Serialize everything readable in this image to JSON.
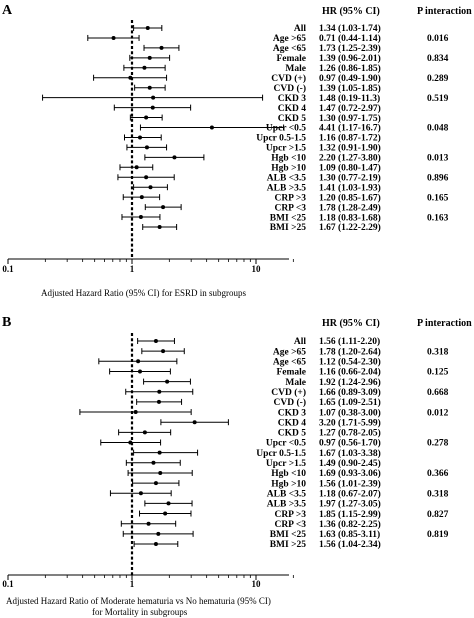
{
  "chart_data": [
    {
      "panel": "A",
      "type": "forest",
      "x_scale": "log",
      "xlim": [
        0.1,
        20
      ],
      "x_ticks": [
        "0.1",
        "1",
        "10"
      ],
      "reference_line": 1,
      "xlabel": "Adjusted Hazard Ratio (95% CI) for ESRD in subgroups",
      "headers": {
        "hr": "HR (95% CI)",
        "p": "P interaction"
      },
      "rows": [
        {
          "label": "All",
          "hr": 1.34,
          "lo": 1.03,
          "hi": 1.74,
          "text": "1.34 (1.03-1.74)",
          "p": ""
        },
        {
          "label": "Age >65",
          "hr": 0.71,
          "lo": 0.44,
          "hi": 1.14,
          "text": "0.71 (0.44-1.14)",
          "p": "0.016"
        },
        {
          "label": "Age <65",
          "hr": 1.73,
          "lo": 1.25,
          "hi": 2.39,
          "text": "1.73 (1.25-2.39)",
          "p": ""
        },
        {
          "label": "Female",
          "hr": 1.39,
          "lo": 0.96,
          "hi": 2.01,
          "text": "1.39 (0.96-2.01)",
          "p": "0.834"
        },
        {
          "label": "Male",
          "hr": 1.26,
          "lo": 0.86,
          "hi": 1.85,
          "text": "1.26 (0.86-1.85)",
          "p": ""
        },
        {
          "label": "CVD (+)",
          "hr": 0.97,
          "lo": 0.49,
          "hi": 1.9,
          "text": "0.97 (0.49-1.90)",
          "p": "0.289"
        },
        {
          "label": "CVD (-)",
          "hr": 1.39,
          "lo": 1.05,
          "hi": 1.85,
          "text": "1.39 (1.05-1.85)",
          "p": ""
        },
        {
          "label": "CKD 3",
          "hr": 1.48,
          "lo": 0.19,
          "hi": 11.3,
          "text": "1.48 (0.19-11.3)",
          "p": "0.519"
        },
        {
          "label": "CKD 4",
          "hr": 1.47,
          "lo": 0.72,
          "hi": 2.97,
          "text": "1.47 (0.72-2.97)",
          "p": ""
        },
        {
          "label": "CKD 5",
          "hr": 1.3,
          "lo": 0.97,
          "hi": 1.75,
          "text": "1.30 (0.97-1.75)",
          "p": ""
        },
        {
          "label": "Upcr <0.5",
          "hr": 4.41,
          "lo": 1.17,
          "hi": 16.7,
          "text": "4.41 (1.17-16.7)",
          "p": "0.048"
        },
        {
          "label": "Upcr 0.5-1.5",
          "hr": 1.16,
          "lo": 0.87,
          "hi": 1.72,
          "text": "1.16 (0.87-1.72)",
          "p": ""
        },
        {
          "label": "Upcr >1.5",
          "hr": 1.32,
          "lo": 0.91,
          "hi": 1.9,
          "text": "1.32 (0.91-1.90)",
          "p": ""
        },
        {
          "label": "Hgb <10",
          "hr": 2.2,
          "lo": 1.27,
          "hi": 3.8,
          "text": "2.20 (1.27-3.80)",
          "p": "0.013"
        },
        {
          "label": "Hgb >10",
          "hr": 1.09,
          "lo": 0.8,
          "hi": 1.47,
          "text": "1.09 (0.80-1.47)",
          "p": ""
        },
        {
          "label": "ALB <3.5",
          "hr": 1.3,
          "lo": 0.77,
          "hi": 2.19,
          "text": "1.30 (0.77-2.19)",
          "p": "0.896"
        },
        {
          "label": "ALB >3.5",
          "hr": 1.41,
          "lo": 1.03,
          "hi": 1.93,
          "text": "1.41 (1.03-1.93)",
          "p": ""
        },
        {
          "label": "CRP >3",
          "hr": 1.2,
          "lo": 0.85,
          "hi": 1.67,
          "text": "1.20 (0.85-1.67)",
          "p": "0.165"
        },
        {
          "label": "CRP <3",
          "hr": 1.78,
          "lo": 1.28,
          "hi": 2.49,
          "text": "1.78 (1.28-2.49)",
          "p": ""
        },
        {
          "label": "BMI <25",
          "hr": 1.18,
          "lo": 0.83,
          "hi": 1.68,
          "text": "1.18 (0.83-1.68)",
          "p": "0.163"
        },
        {
          "label": "BMI >25",
          "hr": 1.67,
          "lo": 1.22,
          "hi": 2.29,
          "text": "1.67 (1.22-2.29)",
          "p": ""
        }
      ]
    },
    {
      "panel": "B",
      "type": "forest",
      "x_scale": "log",
      "xlim": [
        0.1,
        20
      ],
      "x_ticks": [
        "0.1",
        "1",
        "10"
      ],
      "reference_line": 1,
      "xlabel_lines": [
        "Adjusted Hazard Ratio of Moderate hematuria vs No hematuria (95% CI)",
        "for Mortality in subgroups"
      ],
      "headers": {
        "hr": "HR (95% CI)",
        "p": "P interaction"
      },
      "rows": [
        {
          "label": "All",
          "hr": 1.56,
          "lo": 1.11,
          "hi": 2.2,
          "text": "1.56 (1.11-2.20)",
          "p": ""
        },
        {
          "label": "Age >65",
          "hr": 1.78,
          "lo": 1.2,
          "hi": 2.64,
          "text": "1.78 (1.20-2.64)",
          "p": "0.318"
        },
        {
          "label": "Age <65",
          "hr": 1.12,
          "lo": 0.54,
          "hi": 2.3,
          "text": "1.12 (0.54-2.30)",
          "p": ""
        },
        {
          "label": "Female",
          "hr": 1.16,
          "lo": 0.66,
          "hi": 2.04,
          "text": "1.16 (0.66-2.04)",
          "p": "0.125"
        },
        {
          "label": "Male",
          "hr": 1.92,
          "lo": 1.24,
          "hi": 2.96,
          "text": "1.92 (1.24-2.96)",
          "p": ""
        },
        {
          "label": "CVD (+)",
          "hr": 1.66,
          "lo": 0.89,
          "hi": 3.09,
          "text": "1.66 (0.89-3.09)",
          "p": "0.668"
        },
        {
          "label": "CVD (-)",
          "hr": 1.65,
          "lo": 1.09,
          "hi": 2.51,
          "text": "1.65 (1.09-2.51)",
          "p": ""
        },
        {
          "label": "CKD 3",
          "hr": 1.07,
          "lo": 0.38,
          "hi": 3.0,
          "text": "1.07 (0.38-3.00)",
          "p": "0.012"
        },
        {
          "label": "CKD 4",
          "hr": 3.2,
          "lo": 1.71,
          "hi": 5.99,
          "text": "3.20 (1.71-5.99)",
          "p": ""
        },
        {
          "label": "CKD 5",
          "hr": 1.27,
          "lo": 0.78,
          "hi": 2.05,
          "text": "1.27 (0.78-2.05)",
          "p": ""
        },
        {
          "label": "Upcr <0.5",
          "hr": 0.97,
          "lo": 0.56,
          "hi": 1.7,
          "text": "0.97 (0.56-1.70)",
          "p": "0.278"
        },
        {
          "label": "Upcr 0.5-1.5",
          "hr": 1.67,
          "lo": 1.03,
          "hi": 3.38,
          "text": "1.67 (1.03-3.38)",
          "p": ""
        },
        {
          "label": "Upcr >1.5",
          "hr": 1.49,
          "lo": 0.9,
          "hi": 2.45,
          "text": "1.49 (0.90-2.45)",
          "p": ""
        },
        {
          "label": "Hgb <10",
          "hr": 1.69,
          "lo": 0.93,
          "hi": 3.06,
          "text": "1.69 (0.93-3.06)",
          "p": "0.366"
        },
        {
          "label": "Hgb >10",
          "hr": 1.56,
          "lo": 1.01,
          "hi": 2.39,
          "text": "1.56 (1.01-2.39)",
          "p": ""
        },
        {
          "label": "ALB <3.5",
          "hr": 1.18,
          "lo": 0.67,
          "hi": 2.07,
          "text": "1.18 (0.67-2.07)",
          "p": "0.318"
        },
        {
          "label": "ALB >3.5",
          "hr": 1.97,
          "lo": 1.27,
          "hi": 3.05,
          "text": "1.97 (1.27-3.05)",
          "p": ""
        },
        {
          "label": "CRP >3",
          "hr": 1.85,
          "lo": 1.15,
          "hi": 2.99,
          "text": "1.85 (1.15-2.99)",
          "p": "0.827"
        },
        {
          "label": "CRP <3",
          "hr": 1.36,
          "lo": 0.82,
          "hi": 2.25,
          "text": "1.36 (0.82-2.25)",
          "p": ""
        },
        {
          "label": "BMI <25",
          "hr": 1.63,
          "lo": 0.85,
          "hi": 3.11,
          "text": "1.63 (0.85-3.11)",
          "p": "0.819"
        },
        {
          "label": "BMI >25",
          "hr": 1.56,
          "lo": 1.04,
          "hi": 2.34,
          "text": "1.56 (1.04-2.34)",
          "p": ""
        }
      ]
    }
  ]
}
